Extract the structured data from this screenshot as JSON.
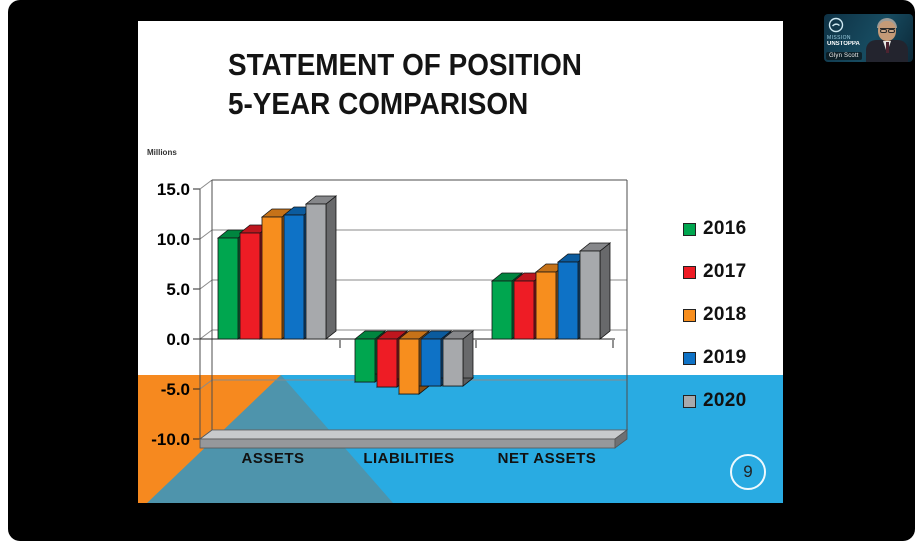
{
  "slide": {
    "title_line1": "STATEMENT OF POSITION",
    "title_line2": "5-YEAR COMPARISON",
    "axis_units": "Millions",
    "page_badge": "9"
  },
  "chart_data": {
    "type": "bar",
    "title": "Statement of Position 5-Year Comparison",
    "units_label": "Millions",
    "categories": [
      "ASSETS",
      "LIABILITIES",
      "NET ASSETS"
    ],
    "series": [
      {
        "name": "2016",
        "color": "#00A64F",
        "values": [
          10.1,
          -4.3,
          5.8
        ]
      },
      {
        "name": "2017",
        "color": "#EE1C25",
        "values": [
          10.6,
          -4.8,
          5.8
        ]
      },
      {
        "name": "2018",
        "color": "#F78E1E",
        "values": [
          12.2,
          -5.5,
          6.7
        ]
      },
      {
        "name": "2019",
        "color": "#0E72C6",
        "values": [
          12.4,
          -4.7,
          7.7
        ]
      },
      {
        "name": "2020",
        "color": "#A7A9AC",
        "values": [
          13.5,
          -4.7,
          8.8
        ]
      }
    ],
    "ylim": [
      -10,
      15
    ],
    "ytick_step": 5,
    "ytick_labels": [
      "15.0",
      "10.0",
      "5.0",
      "0.0",
      "-5.0",
      "-10.0"
    ],
    "grid": true,
    "legend_position": "right",
    "style": "3d-column"
  },
  "decor_colors": {
    "band_cyan": "#29ABE2",
    "triangle_orange": "#F6891F",
    "triangle_teal": "#4E94AC"
  },
  "video_thumbnail": {
    "logo_text_line1": "MISSION",
    "logo_text_line2": "UNSTOPPA",
    "name_label": "Glyn Scott"
  }
}
